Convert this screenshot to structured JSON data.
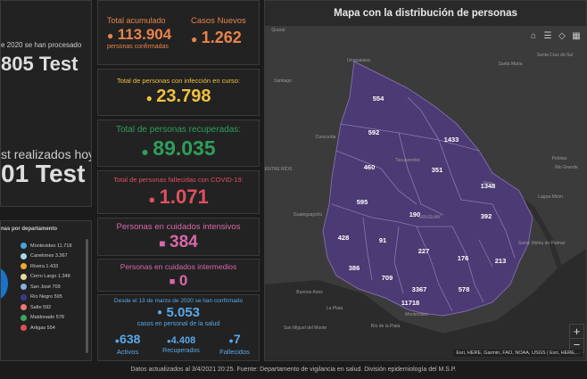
{
  "tests_panel": {
    "processed_text": "e 2020 se han procesado",
    "processed_value": "805 Test",
    "today_text": "st realizados hoy",
    "today_value": "01 Test"
  },
  "accumulated": {
    "label": "Total acumulado",
    "value": "113.904",
    "sub": "personas confirmadas"
  },
  "new_cases": {
    "label": "Casos Nuevos",
    "value": "1.262"
  },
  "active": {
    "label": "Total de personas con infección en curso:",
    "value": "23.798"
  },
  "recovered": {
    "label": "Total de personas recuperadas:",
    "value": "89.035"
  },
  "deaths": {
    "label": "Total de personas fallecidas con COVID-19:",
    "value": "1.071"
  },
  "icu": {
    "label": "Personas en cuidados intensivos",
    "value": "384"
  },
  "intermediate": {
    "label": "Personas en cuidados intermedios",
    "value": "0"
  },
  "health_staff": {
    "line1": "Desde el 13 de marzo de 2020 se han confirmado",
    "value": "5.053",
    "line2": "casos en personal de la salud",
    "active_value": "638",
    "active_label": "Activos",
    "recovered_value": "4.408",
    "recovered_label": "Recuperados",
    "deaths_value": "7",
    "deaths_label": "Fallecidos"
  },
  "department_legend": {
    "title": "nas por departamento",
    "items": [
      {
        "name": "Montevideo",
        "value": "11.718",
        "color": "#4aa3df"
      },
      {
        "name": "Canelones",
        "value": "3.367",
        "color": "#a8d8f0"
      },
      {
        "name": "Rivera",
        "value": "1.433",
        "color": "#f0a830"
      },
      {
        "name": "Cerro Largo",
        "value": "1.348",
        "color": "#e8d8a0"
      },
      {
        "name": "San José",
        "value": "709",
        "color": "#8ab0e0"
      },
      {
        "name": "Río Negro",
        "value": "595",
        "color": "#3a3a8a"
      },
      {
        "name": "Salto",
        "value": "592",
        "color": "#e87878"
      },
      {
        "name": "Maldonado",
        "value": "578",
        "color": "#3aa860"
      },
      {
        "name": "Artigas",
        "value": "554",
        "color": "#e05050"
      }
    ]
  },
  "map": {
    "title": "Mapa con la distribución de personas",
    "counts": [
      "554",
      "592",
      "1433",
      "460",
      "351",
      "1348",
      "595",
      "190",
      "392",
      "428",
      "91",
      "227",
      "176",
      "213",
      "386",
      "709",
      "578",
      "3367",
      "11718"
    ],
    "places": [
      "Quaraí",
      "Uruguaiana",
      "Santiago",
      "Pelotas",
      "Rio Grande",
      "ENTRE RÍOS",
      "Concordia",
      "Tacuarembó",
      "Gualeguaychú",
      "URUGUAY",
      "Melo",
      "Buenos Aires",
      "La Plata",
      "Montevideo",
      "San Miguel del Monte",
      "Río de la Plata",
      "Santa Cruz do Sul",
      "Santa Maria",
      "Lagoa Mirim",
      "Santa Vitória do Palmar"
    ],
    "attribution": "Esri, HERE, Garmin, FAO, NOAA, USGS | Esri, HERE,...",
    "zoom_in": "+",
    "zoom_out": "−"
  },
  "footer": "Datos actualizados al 3/4/2021 20:25. Fuente: Departamento de vigilancia en salud. División epidemiología del M.S.P."
}
